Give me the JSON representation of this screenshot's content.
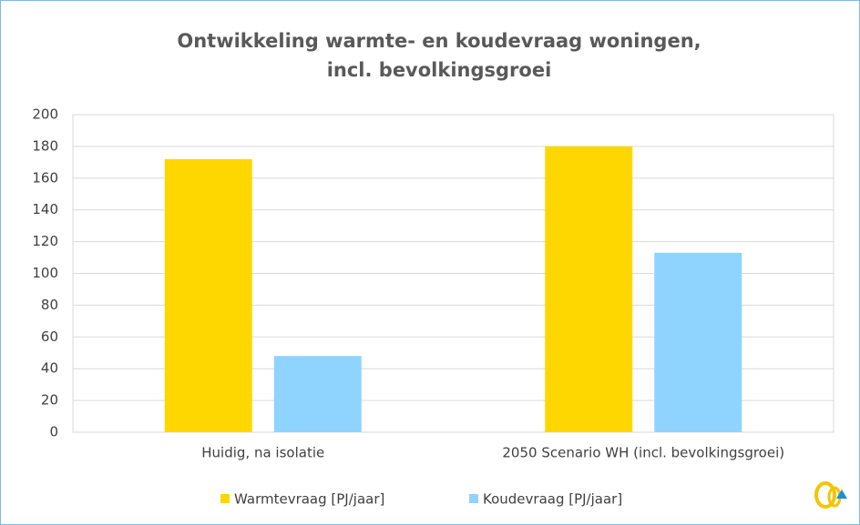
{
  "chart_data": {
    "type": "bar",
    "title": [
      "Ontwikkeling warmte- en koudevraag woningen,",
      "incl. bevolkingsgroei"
    ],
    "categories": [
      "Huidig, na isolatie",
      "2050 Scenario WH (incl. bevolkingsgroei)"
    ],
    "series": [
      {
        "name": "Warmtevraag [PJ/jaar]",
        "color": "#ffd700",
        "values": [
          172,
          180
        ]
      },
      {
        "name": "Koudevraag [PJ/jaar]",
        "color": "#8fd3ff",
        "values": [
          48,
          113
        ]
      }
    ],
    "ylim": [
      0,
      200
    ],
    "yticks": [
      0,
      20,
      40,
      60,
      80,
      100,
      120,
      140,
      160,
      180,
      200
    ],
    "grid": true,
    "legend": "bottom"
  }
}
